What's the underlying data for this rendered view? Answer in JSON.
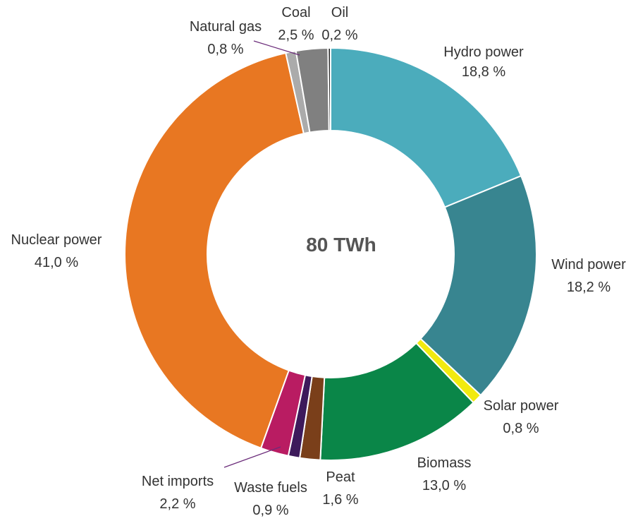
{
  "chart_data": {
    "type": "pie",
    "variant": "donut",
    "center_label": "80 TWh",
    "unit_suffix": " %",
    "slices": [
      {
        "name": "Hydro power",
        "value": 18.8,
        "value_label": "18,8 %",
        "color": "#4BACBC"
      },
      {
        "name": "Wind power",
        "value": 18.2,
        "value_label": "18,2 %",
        "color": "#388590"
      },
      {
        "name": "Solar power",
        "value": 0.8,
        "value_label": "0,8 %",
        "color": "#F2EA0F"
      },
      {
        "name": "Biomass",
        "value": 13.0,
        "value_label": "13,0 %",
        "color": "#0A8648"
      },
      {
        "name": "Peat",
        "value": 1.6,
        "value_label": "1,6 %",
        "color": "#7A3F1A"
      },
      {
        "name": "Waste fuels",
        "value": 0.9,
        "value_label": "0,9 %",
        "color": "#3D1A5B"
      },
      {
        "name": "Net imports",
        "value": 2.2,
        "value_label": "2,2 %",
        "color": "#B91C62"
      },
      {
        "name": "Nuclear power",
        "value": 41.0,
        "value_label": "41,0 %",
        "color": "#E87722"
      },
      {
        "name": "Natural gas",
        "value": 0.8,
        "value_label": "0,8 %",
        "color": "#ABABAB"
      },
      {
        "name": "Coal",
        "value": 2.5,
        "value_label": "2,5 %",
        "color": "#808080"
      },
      {
        "name": "Oil",
        "value": 0.2,
        "value_label": "0,2 %",
        "color": "#2A2A2A"
      }
    ],
    "leader_line_color": "#6B2C7A"
  }
}
